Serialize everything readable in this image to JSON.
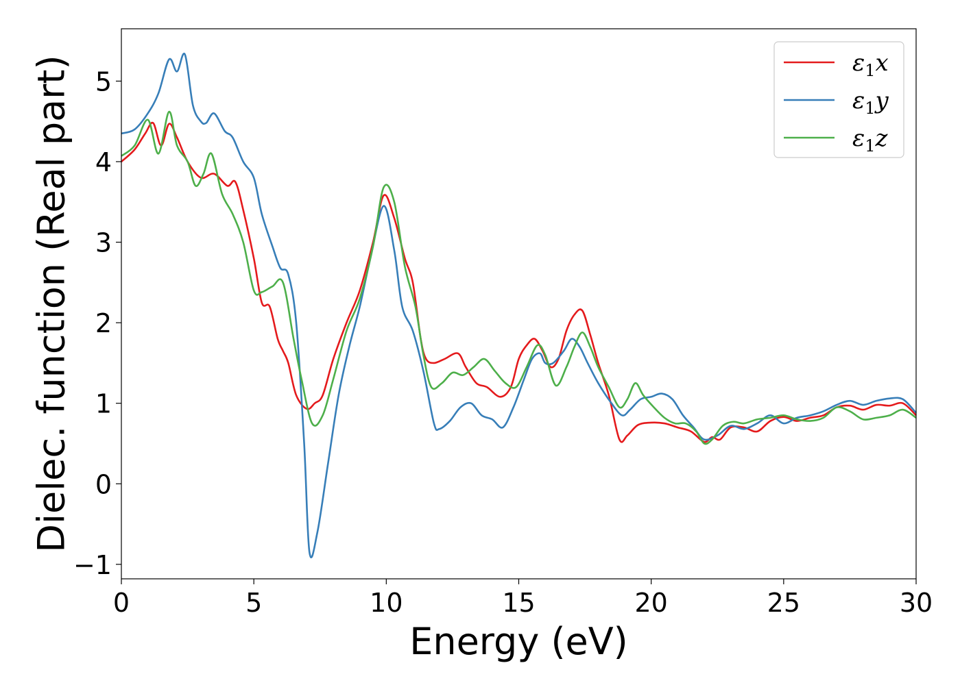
{
  "chart_data": {
    "type": "line",
    "title": "",
    "xlabel": "Energy (eV)",
    "ylabel": "Dielec. function (Real part)",
    "xlim": [
      0,
      30
    ],
    "ylim": [
      -1.18,
      5.65
    ],
    "xticks": [
      0,
      5,
      10,
      15,
      20,
      25,
      30
    ],
    "xtick_labels": [
      "0",
      "5",
      "10",
      "15",
      "20",
      "25",
      "30"
    ],
    "yticks": [
      -1,
      0,
      1,
      2,
      3,
      4,
      5
    ],
    "ytick_labels": [
      "−1",
      "0",
      "1",
      "2",
      "3",
      "4",
      "5"
    ],
    "grid": false,
    "legend_position": "top-right",
    "series": [
      {
        "name": "ε₁x",
        "label_main": "ε",
        "label_sub": "1",
        "label_var": "x",
        "color": "#e41a1c",
        "x": [
          0,
          0.5,
          0.9,
          1.2,
          1.5,
          1.8,
          2.1,
          2.5,
          3.0,
          3.5,
          4.0,
          4.3,
          4.6,
          5.0,
          5.3,
          5.6,
          5.9,
          6.1,
          6.3,
          6.6,
          7.0,
          7.3,
          7.6,
          8.0,
          8.5,
          9.0,
          9.5,
          9.9,
          10.3,
          10.7,
          11.0,
          11.3,
          11.5,
          11.8,
          12.2,
          12.7,
          13.0,
          13.4,
          13.8,
          14.3,
          14.7,
          15.0,
          15.3,
          15.6,
          15.9,
          16.2,
          16.5,
          16.8,
          17.1,
          17.4,
          17.7,
          18.0,
          18.4,
          18.8,
          19.1,
          19.5,
          20.0,
          20.5,
          21.0,
          21.5,
          22.0,
          22.3,
          22.6,
          23.0,
          23.5,
          24.0,
          24.5,
          25.0,
          25.5,
          26.0,
          26.5,
          27.0,
          27.5,
          28.0,
          28.5,
          29.0,
          29.5,
          30.0
        ],
        "values": [
          4.0,
          4.15,
          4.35,
          4.48,
          4.2,
          4.47,
          4.3,
          4.0,
          3.8,
          3.85,
          3.7,
          3.75,
          3.4,
          2.8,
          2.25,
          2.2,
          1.8,
          1.65,
          1.5,
          1.1,
          0.93,
          1.0,
          1.1,
          1.55,
          2.0,
          2.4,
          3.0,
          3.58,
          3.3,
          2.8,
          2.5,
          1.8,
          1.55,
          1.5,
          1.55,
          1.62,
          1.45,
          1.25,
          1.2,
          1.08,
          1.2,
          1.55,
          1.72,
          1.8,
          1.65,
          1.45,
          1.55,
          1.9,
          2.1,
          2.15,
          1.85,
          1.5,
          1.1,
          0.55,
          0.6,
          0.73,
          0.76,
          0.75,
          0.7,
          0.65,
          0.52,
          0.58,
          0.55,
          0.7,
          0.7,
          0.65,
          0.78,
          0.83,
          0.78,
          0.82,
          0.85,
          0.95,
          0.97,
          0.92,
          0.98,
          0.97,
          1.0,
          0.85
        ]
      },
      {
        "name": "ε₁y",
        "label_main": "ε",
        "label_sub": "1",
        "label_var": "y",
        "color": "#377eb8",
        "x": [
          0,
          0.5,
          1.0,
          1.4,
          1.8,
          2.1,
          2.4,
          2.7,
          3.0,
          3.2,
          3.5,
          3.9,
          4.2,
          4.6,
          5.0,
          5.3,
          5.7,
          6.0,
          6.3,
          6.6,
          6.9,
          7.1,
          7.4,
          7.8,
          8.2,
          8.6,
          9.0,
          9.4,
          9.9,
          10.3,
          10.6,
          11.0,
          11.4,
          11.8,
          12.0,
          12.4,
          12.8,
          13.2,
          13.6,
          14.0,
          14.4,
          14.8,
          15.2,
          15.5,
          15.8,
          16.0,
          16.3,
          16.7,
          17.0,
          17.3,
          17.6,
          18.0,
          18.5,
          18.9,
          19.2,
          19.6,
          20.0,
          20.4,
          20.8,
          21.2,
          21.6,
          22.0,
          22.5,
          23.0,
          23.5,
          24.0,
          24.5,
          25.0,
          25.5,
          26.0,
          26.5,
          27.0,
          27.5,
          28.0,
          28.5,
          29.0,
          29.5,
          30.0
        ],
        "values": [
          4.35,
          4.4,
          4.6,
          4.85,
          5.27,
          5.12,
          5.33,
          4.7,
          4.5,
          4.48,
          4.6,
          4.38,
          4.3,
          4.0,
          3.8,
          3.35,
          2.95,
          2.68,
          2.6,
          2.0,
          0.5,
          -0.85,
          -0.6,
          0.25,
          1.1,
          1.7,
          2.2,
          2.8,
          3.45,
          2.9,
          2.2,
          1.9,
          1.4,
          0.75,
          0.68,
          0.78,
          0.95,
          1.0,
          0.85,
          0.8,
          0.7,
          0.95,
          1.3,
          1.55,
          1.62,
          1.5,
          1.5,
          1.65,
          1.8,
          1.7,
          1.5,
          1.25,
          1.0,
          0.85,
          0.92,
          1.05,
          1.08,
          1.12,
          1.05,
          0.85,
          0.7,
          0.55,
          0.6,
          0.72,
          0.68,
          0.75,
          0.85,
          0.75,
          0.82,
          0.85,
          0.9,
          0.98,
          1.03,
          0.98,
          1.03,
          1.06,
          1.05,
          0.88
        ]
      },
      {
        "name": "ε₁z",
        "label_main": "ε",
        "label_sub": "1",
        "label_var": "z",
        "color": "#4daf4a",
        "x": [
          0,
          0.5,
          1.0,
          1.4,
          1.8,
          2.1,
          2.5,
          2.8,
          3.1,
          3.4,
          3.8,
          4.2,
          4.6,
          5.0,
          5.3,
          5.7,
          6.1,
          6.5,
          6.8,
          7.2,
          7.6,
          8.0,
          8.5,
          9.0,
          9.5,
          9.9,
          10.3,
          10.7,
          11.1,
          11.4,
          11.7,
          12.1,
          12.5,
          12.9,
          13.3,
          13.7,
          14.1,
          14.5,
          14.9,
          15.3,
          15.7,
          16.0,
          16.4,
          16.8,
          17.1,
          17.4,
          17.7,
          18.0,
          18.4,
          18.8,
          19.1,
          19.4,
          19.7,
          20.1,
          20.5,
          20.9,
          21.3,
          21.7,
          22.0,
          22.3,
          22.7,
          23.1,
          23.5,
          24.0,
          24.5,
          25.0,
          25.5,
          26.0,
          26.5,
          27.0,
          27.5,
          28.0,
          28.5,
          29.0,
          29.5,
          30.0
        ],
        "values": [
          4.07,
          4.2,
          4.52,
          4.1,
          4.62,
          4.2,
          4.0,
          3.7,
          3.85,
          4.1,
          3.6,
          3.35,
          3.0,
          2.4,
          2.38,
          2.45,
          2.5,
          1.8,
          1.3,
          0.75,
          0.85,
          1.3,
          1.9,
          2.3,
          2.95,
          3.68,
          3.5,
          2.7,
          2.2,
          1.6,
          1.2,
          1.25,
          1.38,
          1.35,
          1.45,
          1.55,
          1.4,
          1.25,
          1.2,
          1.45,
          1.72,
          1.6,
          1.22,
          1.45,
          1.7,
          1.88,
          1.7,
          1.45,
          1.2,
          0.95,
          1.05,
          1.25,
          1.1,
          0.95,
          0.82,
          0.75,
          0.75,
          0.65,
          0.5,
          0.55,
          0.72,
          0.77,
          0.75,
          0.8,
          0.82,
          0.85,
          0.8,
          0.78,
          0.82,
          0.95,
          0.9,
          0.8,
          0.82,
          0.85,
          0.92,
          0.82
        ]
      }
    ]
  }
}
